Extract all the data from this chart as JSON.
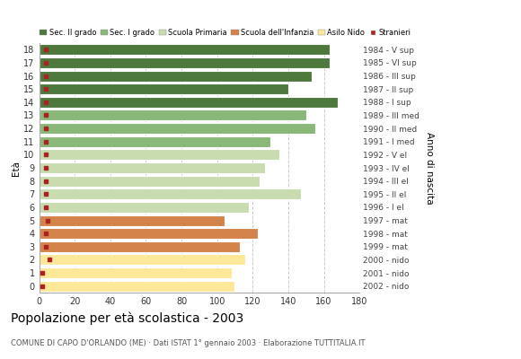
{
  "ages": [
    0,
    1,
    2,
    3,
    4,
    5,
    6,
    7,
    8,
    9,
    10,
    11,
    12,
    13,
    14,
    15,
    16,
    17,
    18
  ],
  "values": [
    110,
    108,
    116,
    113,
    123,
    104,
    118,
    147,
    124,
    127,
    135,
    130,
    155,
    150,
    168,
    140,
    153,
    163,
    163
  ],
  "stranieri_x": [
    2,
    2,
    6,
    4,
    4,
    5,
    4,
    4,
    4,
    4,
    4,
    4,
    4,
    4,
    4,
    4,
    4,
    4,
    4
  ],
  "colors": {
    "0": "#fde89a",
    "1": "#fde89a",
    "2": "#fde89a",
    "3": "#d4844a",
    "4": "#d4844a",
    "5": "#d4844a",
    "6": "#c8dcb0",
    "7": "#c8dcb0",
    "8": "#c8dcb0",
    "9": "#c8dcb0",
    "10": "#c8dcb0",
    "11": "#8ab878",
    "12": "#8ab878",
    "13": "#8ab878",
    "14": "#4d7a3c",
    "15": "#4d7a3c",
    "16": "#4d7a3c",
    "17": "#4d7a3c",
    "18": "#4d7a3c"
  },
  "right_labels": [
    "2002 - nido",
    "2001 - nido",
    "2000 - nido",
    "1999 - mat",
    "1998 - mat",
    "1997 - mat",
    "1996 - I el",
    "1995 - II el",
    "1994 - III el",
    "1993 - IV el",
    "1992 - V el",
    "1991 - I med",
    "1990 - II med",
    "1989 - III med",
    "1988 - I sup",
    "1987 - II sup",
    "1986 - III sup",
    "1985 - VI sup",
    "1984 - V sup"
  ],
  "legend_labels": [
    "Sec. II grado",
    "Sec. I grado",
    "Scuola Primaria",
    "Scuola dell'Infanzia",
    "Asilo Nido",
    "Stranieri"
  ],
  "legend_colors": [
    "#4d7a3c",
    "#8ab878",
    "#c8dcb0",
    "#d4844a",
    "#fde89a",
    "#aa2222"
  ],
  "title": "Popolazione per età scolastica - 2003",
  "subtitle": "COMUNE DI CAPO D'ORLANDO (ME) · Dati ISTAT 1° gennaio 2003 · Elaborazione TUTTITALIA.IT",
  "ylabel_left": "Età",
  "ylabel_right": "Anno di nascita",
  "xlim": [
    0,
    180
  ],
  "xticks": [
    0,
    20,
    40,
    60,
    80,
    100,
    120,
    140,
    160,
    180
  ],
  "stranieri_color": "#aa2222",
  "grid_color": "#cccccc",
  "bar_edge_color": "white",
  "bg_color": "white"
}
